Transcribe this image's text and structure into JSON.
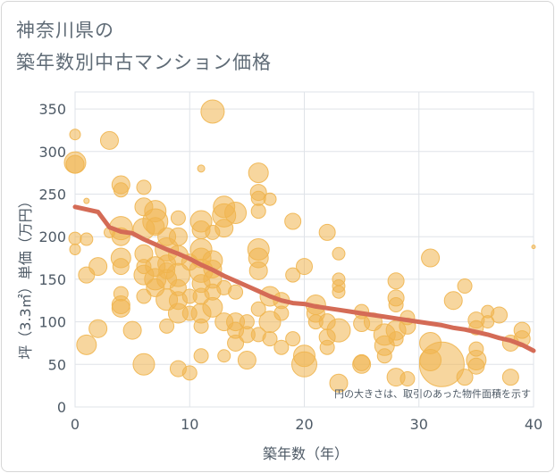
{
  "title_line1": "神奈川県の",
  "title_line2": "築年数別中古マンション価格",
  "chart_data": {
    "type": "scatter",
    "xlabel": "築年数（年）",
    "ylabel": "坪（3.3㎡）単価（万円）",
    "note": "円の大きさは、取引のあった物件面積を示す",
    "xlim": [
      0,
      40
    ],
    "ylim": [
      0,
      370
    ],
    "xticks": [
      0,
      10,
      20,
      30,
      40
    ],
    "yticks": [
      0,
      50,
      100,
      150,
      200,
      250,
      300,
      350
    ],
    "colors": {
      "bubble": "#f0b54f",
      "line": "#d46b56",
      "grid": "#dfe3e8"
    },
    "trend": {
      "x": [
        0,
        2,
        3,
        4,
        5,
        6,
        7,
        8,
        9,
        10,
        11,
        12,
        13,
        14,
        15,
        16,
        17,
        18,
        19,
        20,
        21,
        22,
        23,
        24,
        25,
        26,
        27,
        28,
        29,
        30,
        31,
        32,
        33,
        34,
        35,
        36,
        37,
        38,
        39,
        40
      ],
      "y": [
        235,
        229,
        211,
        206,
        204,
        197,
        191,
        185,
        180,
        174,
        167,
        161,
        154,
        148,
        142,
        136,
        130,
        125,
        122,
        121,
        118,
        116,
        114,
        112,
        110,
        108,
        106,
        104,
        102,
        100,
        98,
        96,
        93,
        91,
        88,
        85,
        81,
        78,
        73,
        66
      ]
    },
    "points": [
      [
        0,
        320,
        6
      ],
      [
        0,
        287,
        12
      ],
      [
        0,
        285,
        10
      ],
      [
        0,
        198,
        7
      ],
      [
        0,
        185,
        6
      ],
      [
        1,
        242,
        3
      ],
      [
        1,
        197,
        7
      ],
      [
        1,
        155,
        9
      ],
      [
        1,
        73,
        11
      ],
      [
        2,
        165,
        10
      ],
      [
        2,
        92,
        10
      ],
      [
        3,
        313,
        10
      ],
      [
        3,
        205,
        6
      ],
      [
        4,
        261,
        10
      ],
      [
        4,
        255,
        8
      ],
      [
        4,
        210,
        13
      ],
      [
        4,
        200,
        10
      ],
      [
        4,
        175,
        11
      ],
      [
        4,
        165,
        9
      ],
      [
        4,
        133,
        8
      ],
      [
        4,
        120,
        10
      ],
      [
        4,
        116,
        10
      ],
      [
        5,
        90,
        10
      ],
      [
        6,
        258,
        8
      ],
      [
        6,
        235,
        10
      ],
      [
        6,
        209,
        12
      ],
      [
        6,
        180,
        10
      ],
      [
        6,
        165,
        8
      ],
      [
        6,
        155,
        11
      ],
      [
        6,
        130,
        8
      ],
      [
        6,
        50,
        12
      ],
      [
        7,
        230,
        12
      ],
      [
        7,
        218,
        14
      ],
      [
        7,
        212,
        10
      ],
      [
        7,
        165,
        11
      ],
      [
        7,
        150,
        12
      ],
      [
        7,
        140,
        10
      ],
      [
        8,
        200,
        10
      ],
      [
        8,
        185,
        13
      ],
      [
        8,
        168,
        10
      ],
      [
        8,
        160,
        9
      ],
      [
        8,
        150,
        11
      ],
      [
        8,
        126,
        12
      ],
      [
        8,
        95,
        8
      ],
      [
        9,
        222,
        8
      ],
      [
        9,
        200,
        10
      ],
      [
        9,
        178,
        11
      ],
      [
        9,
        155,
        13
      ],
      [
        9,
        140,
        9
      ],
      [
        9,
        125,
        10
      ],
      [
        9,
        110,
        11
      ],
      [
        9,
        45,
        9
      ],
      [
        10,
        170,
        9
      ],
      [
        10,
        130,
        8
      ],
      [
        10,
        110,
        8
      ],
      [
        10,
        40,
        8
      ],
      [
        11,
        280,
        4
      ],
      [
        11,
        218,
        12
      ],
      [
        11,
        208,
        10
      ],
      [
        11,
        185,
        12
      ],
      [
        11,
        175,
        11
      ],
      [
        11,
        160,
        13
      ],
      [
        11,
        145,
        10
      ],
      [
        11,
        130,
        9
      ],
      [
        11,
        110,
        11
      ],
      [
        11,
        95,
        8
      ],
      [
        11,
        60,
        8
      ],
      [
        12,
        347,
        13
      ],
      [
        12,
        205,
        8
      ],
      [
        12,
        172,
        11
      ],
      [
        12,
        162,
        10
      ],
      [
        12,
        150,
        10
      ],
      [
        12,
        135,
        9
      ],
      [
        12,
        117,
        11
      ],
      [
        13,
        235,
        12
      ],
      [
        13,
        225,
        13
      ],
      [
        13,
        210,
        10
      ],
      [
        13,
        140,
        8
      ],
      [
        13,
        100,
        10
      ],
      [
        13,
        60,
        7
      ],
      [
        14,
        228,
        12
      ],
      [
        14,
        135,
        8
      ],
      [
        14,
        100,
        10
      ],
      [
        14,
        90,
        9
      ],
      [
        14,
        75,
        9
      ],
      [
        15,
        100,
        8
      ],
      [
        15,
        85,
        9
      ],
      [
        15,
        55,
        10
      ],
      [
        16,
        275,
        11
      ],
      [
        16,
        252,
        9
      ],
      [
        16,
        245,
        8
      ],
      [
        16,
        230,
        8
      ],
      [
        16,
        185,
        12
      ],
      [
        16,
        175,
        11
      ],
      [
        16,
        160,
        10
      ],
      [
        16,
        115,
        8
      ],
      [
        16,
        85,
        8
      ],
      [
        17,
        244,
        7
      ],
      [
        17,
        130,
        11
      ],
      [
        17,
        100,
        12
      ],
      [
        17,
        80,
        8
      ],
      [
        18,
        125,
        9
      ],
      [
        18,
        110,
        8
      ],
      [
        18,
        70,
        8
      ],
      [
        19,
        218,
        9
      ],
      [
        19,
        155,
        8
      ],
      [
        19,
        80,
        8
      ],
      [
        20,
        165,
        9
      ],
      [
        20,
        60,
        12
      ],
      [
        20,
        50,
        14
      ],
      [
        21,
        120,
        11
      ],
      [
        21,
        110,
        10
      ],
      [
        21,
        100,
        8
      ],
      [
        22,
        205,
        9
      ],
      [
        22,
        100,
        9
      ],
      [
        22,
        82,
        9
      ],
      [
        22,
        70,
        8
      ],
      [
        23,
        180,
        7
      ],
      [
        23,
        150,
        7
      ],
      [
        23,
        142,
        7
      ],
      [
        23,
        135,
        7
      ],
      [
        23,
        90,
        13
      ],
      [
        23,
        28,
        10
      ],
      [
        25,
        112,
        8
      ],
      [
        25,
        98,
        9
      ],
      [
        25,
        52,
        9
      ],
      [
        25,
        50,
        10
      ],
      [
        26,
        100,
        10
      ],
      [
        27,
        85,
        12
      ],
      [
        27,
        72,
        11
      ],
      [
        27,
        60,
        8
      ],
      [
        28,
        148,
        9
      ],
      [
        28,
        128,
        9
      ],
      [
        28,
        120,
        8
      ],
      [
        28,
        90,
        11
      ],
      [
        28,
        80,
        8
      ],
      [
        28,
        35,
        10
      ],
      [
        29,
        105,
        8
      ],
      [
        29,
        95,
        9
      ],
      [
        29,
        33,
        8
      ],
      [
        31,
        175,
        10
      ],
      [
        31,
        75,
        12
      ],
      [
        31,
        55,
        12
      ],
      [
        32,
        50,
        25
      ],
      [
        33,
        125,
        10
      ],
      [
        34,
        142,
        8
      ],
      [
        34,
        35,
        9
      ],
      [
        35,
        102,
        9
      ],
      [
        35,
        93,
        8
      ],
      [
        35,
        68,
        8
      ],
      [
        35,
        55,
        11
      ],
      [
        35,
        48,
        9
      ],
      [
        36,
        112,
        7
      ],
      [
        36,
        100,
        7
      ],
      [
        37,
        108,
        9
      ],
      [
        38,
        35,
        9
      ],
      [
        38,
        75,
        9
      ],
      [
        39,
        90,
        9
      ],
      [
        39,
        80,
        9
      ],
      [
        40,
        188,
        2
      ]
    ]
  }
}
